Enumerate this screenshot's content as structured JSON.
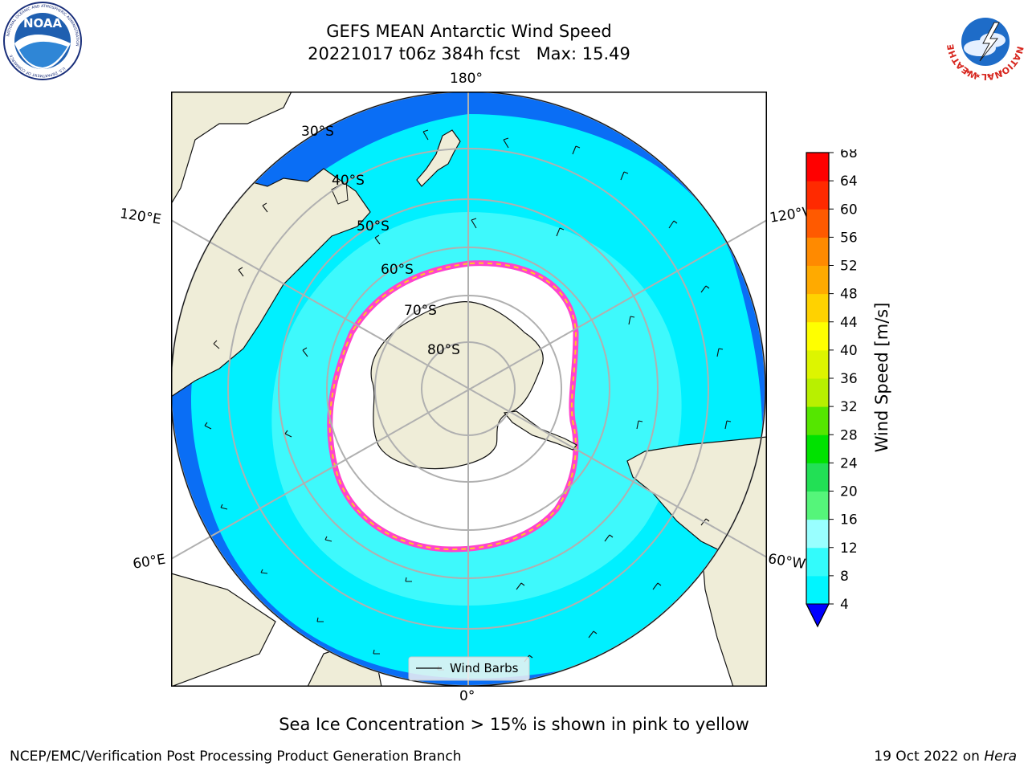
{
  "title": {
    "line1": "GEFS MEAN Antarctic Wind Speed",
    "line2": "20221017 t06z 384h fcst   Max: 15.49"
  },
  "logos": {
    "left": {
      "name": "NOAA",
      "ring_top": "NATIONAL OCEANIC AND ATMOSPHERIC ADMINISTRATION",
      "ring_bottom": "U.S. DEPARTMENT OF COMMERCE"
    },
    "right": {
      "name": "NATIONAL WEATHER SERVICE"
    }
  },
  "map": {
    "longitude_labels": {
      "top": "180°",
      "bottom": "0°",
      "upper_left": "120°E",
      "upper_right": "120°W",
      "lower_left": "60°E",
      "lower_right": "60°W"
    },
    "latitude_labels": [
      "30°S",
      "40°S",
      "50°S",
      "60°S",
      "70°S",
      "80°S"
    ],
    "legend_label": "Wind Barbs",
    "colors": {
      "land": "#efedd8",
      "ocean_low": "#0a6ef5",
      "ocean_mid": "#00f0ff",
      "ocean_high": "#4dfbfb",
      "sea_ice_edge": "#ff44cc",
      "sea_ice_inner": "#ffcc22",
      "grid": "#b0b0b0"
    }
  },
  "colorbar": {
    "label": "Wind Speed [m/s]",
    "ticks": [
      "4",
      "8",
      "12",
      "16",
      "20",
      "24",
      "28",
      "32",
      "36",
      "40",
      "44",
      "48",
      "52",
      "56",
      "60",
      "64",
      "68"
    ],
    "colors": [
      "#0a6ef5",
      "#00f5ff",
      "#33fbfb",
      "#99ffff",
      "#55f57a",
      "#22e055",
      "#00e200",
      "#55e600",
      "#b8f000",
      "#ddf500",
      "#ffff00",
      "#ffd200",
      "#ffaa00",
      "#ff8a00",
      "#ff5a00",
      "#ff2a00",
      "#ff0000"
    ]
  },
  "note": "Sea Ice Concentration > 15% is shown in pink to yellow",
  "footer": {
    "left": "NCEP/EMC/Verification Post Processing Product Generation Branch",
    "right_date": "19 Oct 2022 on ",
    "right_host": "Hera"
  }
}
